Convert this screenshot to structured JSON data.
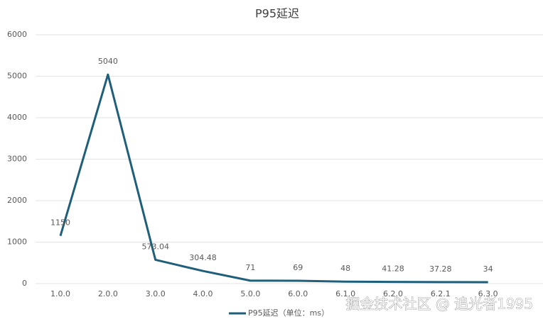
{
  "chart_data": {
    "type": "line",
    "title": "P95延迟",
    "categories": [
      "1.0.0",
      "2.0.0",
      "3.0.0",
      "4.0.0",
      "5.0.0",
      "6.0.0",
      "6.1.0",
      "6.2.0",
      "6.2.1",
      "6.3.0"
    ],
    "series": [
      {
        "name": "P95延迟（单位：ms）",
        "color": "#1f5f7a",
        "values": [
          1150,
          5040,
          573.04,
          304.48,
          71,
          69,
          48,
          41.28,
          37.28,
          34
        ]
      }
    ],
    "ylim": [
      0,
      6000
    ],
    "yticks": [
      0,
      1000,
      2000,
      3000,
      4000,
      5000,
      6000
    ],
    "grid": true,
    "legend": "bottom",
    "watermark": "掘金技术社区 @ 追光者1995"
  }
}
